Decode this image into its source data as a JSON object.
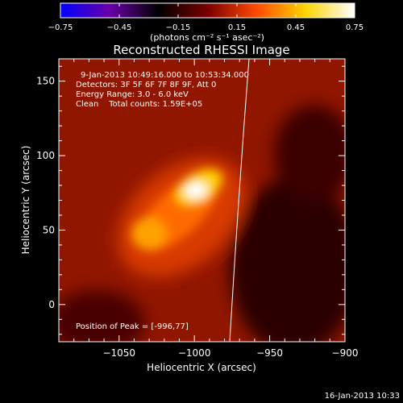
{
  "colorbar": {
    "ticks": [
      "-0.75",
      "-0.45",
      "-0.15",
      "0.15",
      "0.45",
      "0.75"
    ],
    "unit_label": "(photons cm⁻² s⁻¹ asec⁻²)",
    "range": [
      -0.75,
      0.75
    ],
    "colormap": [
      "#0000ff",
      "#6a00a8",
      "#000000",
      "#7a0000",
      "#ff4a00",
      "#ffd400",
      "#ffffff"
    ]
  },
  "footer": {
    "timestamp": "16-Jan-2013 10:33"
  },
  "chart_data": {
    "type": "heatmap",
    "title": "Reconstructed RHESSI Image",
    "xlabel": "Heliocentric X (arcsec)",
    "ylabel": "Heliocentric Y (arcsec)",
    "xlim": [
      -1090,
      -900
    ],
    "ylim": [
      -25,
      165
    ],
    "x_ticks": [
      "−1050",
      "−1000",
      "−950",
      "−900"
    ],
    "x_tick_values": [
      -1050,
      -1000,
      -950,
      -900
    ],
    "y_ticks": [
      "0",
      "50",
      "100",
      "150"
    ],
    "y_tick_values": [
      0,
      50,
      100,
      150
    ],
    "annotations": [
      "9-Jan-2013 10:49:16.000 to 10:53:34.000",
      "Detectors: 3F 5F 6F 7F 8F 9F, Att 0",
      "Energy Range: 3.0 - 6.0 keV",
      "Clean    Total counts: 1.59E+05"
    ],
    "peak_label": "Position of Peak = [-996,77]",
    "peak": [
      -996,
      77
    ],
    "colors": {
      "background": "#000000",
      "frame": "#ffffff",
      "limb": "#ffffff"
    }
  }
}
